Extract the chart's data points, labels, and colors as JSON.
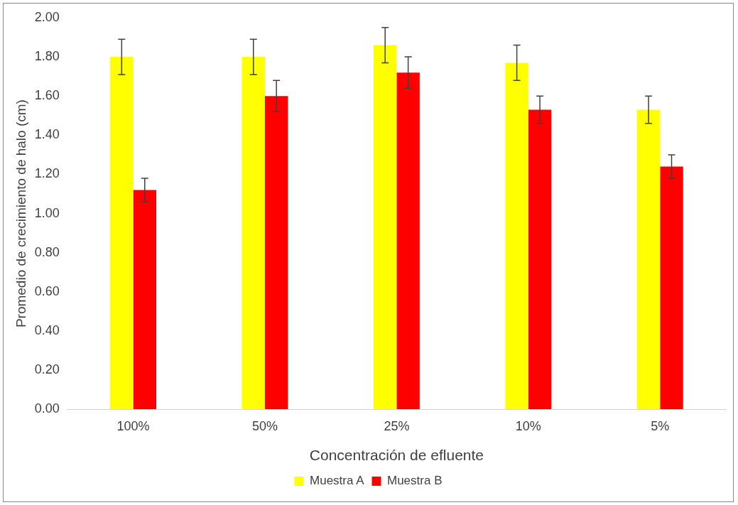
{
  "chart_data": {
    "type": "bar",
    "xlabel": "Concentración de efluente",
    "ylabel": "Promedio de crecimiento de halo (cm)",
    "categories": [
      "100%",
      "50%",
      "25%",
      "10%",
      "5%"
    ],
    "series": [
      {
        "name": "Muestra A",
        "color": "#ffff00",
        "values": [
          1.8,
          1.8,
          1.86,
          1.77,
          1.53
        ],
        "errors": [
          0.09,
          0.09,
          0.09,
          0.09,
          0.07
        ]
      },
      {
        "name": "Muestra B",
        "color": "#ff0000",
        "values": [
          1.12,
          1.6,
          1.72,
          1.53,
          1.24
        ],
        "errors": [
          0.06,
          0.08,
          0.08,
          0.07,
          0.06
        ]
      }
    ],
    "ylim": [
      0,
      2
    ],
    "yticks": [
      {
        "value": 0,
        "label": "0.00"
      },
      {
        "value": 0.2,
        "label": "0.20"
      },
      {
        "value": 0.4,
        "label": "0.40"
      },
      {
        "value": 0.6,
        "label": "0.60"
      },
      {
        "value": 0.8,
        "label": "0.80"
      },
      {
        "value": 1,
        "label": "1.00"
      },
      {
        "value": 1.2,
        "label": "1.20"
      },
      {
        "value": 1.4,
        "label": "1.40"
      },
      {
        "value": 1.6,
        "label": "1.60"
      },
      {
        "value": 1.8,
        "label": "1.80"
      },
      {
        "value": 2,
        "label": "2.00"
      }
    ],
    "grid": false,
    "legend": "bottom"
  }
}
